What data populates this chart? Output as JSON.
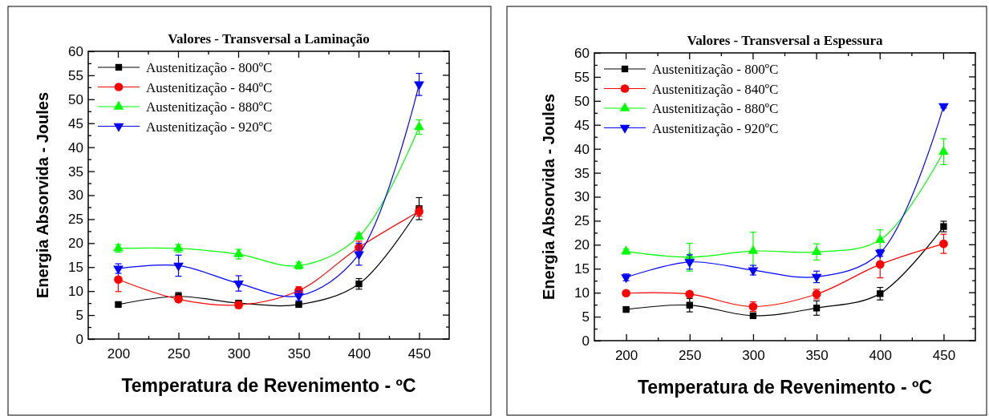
{
  "chart_data": [
    {
      "type": "line",
      "title": "Valores - Transversal a Laminação",
      "xlabel": "Temperatura de Revenimento - ºC",
      "ylabel": "Energia Absorvida - Joules",
      "x": [
        200,
        250,
        300,
        350,
        400,
        450
      ],
      "xlim": [
        175,
        475
      ],
      "ylim": [
        0,
        60
      ],
      "xticks": [
        200,
        {
          "value": 225,
          "label": null
        },
        250,
        {
          "value": 275,
          "label": null
        },
        300,
        {
          "value": 325,
          "label": null
        },
        350,
        {
          "value": 375,
          "label": null
        },
        400,
        {
          "value": 425,
          "label": null
        },
        450
      ],
      "yticks": [
        0,
        {
          "value": 2.5,
          "label": null
        },
        5,
        {
          "value": 7.5,
          "label": null
        },
        10,
        {
          "value": 12.5,
          "label": null
        },
        15,
        {
          "value": 17.5,
          "label": null
        },
        20,
        {
          "value": 22.5,
          "label": null
        },
        25,
        {
          "value": 27.5,
          "label": null
        },
        30,
        {
          "value": 32.5,
          "label": null
        },
        35,
        {
          "value": 37.5,
          "label": null
        },
        40,
        {
          "value": 42.5,
          "label": null
        },
        45,
        {
          "value": 47.5,
          "label": null
        },
        50,
        {
          "value": 52.5,
          "label": null
        },
        55,
        {
          "value": 57.5,
          "label": null
        },
        60
      ],
      "legend": "top left",
      "grid": false,
      "line_style": "solid",
      "series": [
        {
          "name": "Austenitização - 800ºC",
          "color": "#000000",
          "marker": "square",
          "values": [
            7.2,
            8.9,
            7.5,
            7.2,
            11.5,
            27.2
          ],
          "errors": [
            0.4,
            0.8,
            0.4,
            0.3,
            1.1,
            2.3
          ]
        },
        {
          "name": "Austenitização - 840ºC",
          "color": "#ff0000",
          "marker": "circle",
          "values": [
            12.4,
            8.3,
            7.1,
            10.1,
            19.1,
            26.6
          ],
          "errors": [
            2.5,
            0.5,
            0.7,
            0.8,
            1.3,
            1
          ]
        },
        {
          "name": "Austenitização - 880ºC",
          "color": "#00ff00",
          "marker": "triangle",
          "values": [
            18.9,
            18.9,
            17.7,
            15.3,
            21.4,
            44.2
          ],
          "errors": [
            0.8,
            0.8,
            1,
            0.7,
            0.6,
            1.5
          ]
        },
        {
          "name": "Austenitização - 920ºC",
          "color": "#0000ff",
          "marker": "triangle-down",
          "values": [
            14.7,
            15.3,
            11.6,
            9.0,
            17.7,
            53.1
          ],
          "errors": [
            1,
            2.2,
            1.6,
            1,
            2.3,
            2.3
          ]
        }
      ]
    },
    {
      "type": "line",
      "title": "Valores - Transversal a Espessura",
      "xlabel": "Temperatura de Revenimento - ºC",
      "ylabel": "Energia Absorvida - Joules",
      "x": [
        200,
        250,
        300,
        350,
        400,
        450
      ],
      "xlim": [
        175,
        475
      ],
      "ylim": [
        0,
        60
      ],
      "xticks": [
        200,
        {
          "value": 225,
          "label": null
        },
        250,
        {
          "value": 275,
          "label": null
        },
        300,
        {
          "value": 325,
          "label": null
        },
        350,
        {
          "value": 375,
          "label": null
        },
        400,
        {
          "value": 425,
          "label": null
        },
        450
      ],
      "yticks": [
        0,
        {
          "value": 2.5,
          "label": null
        },
        5,
        {
          "value": 7.5,
          "label": null
        },
        10,
        {
          "value": 12.5,
          "label": null
        },
        15,
        {
          "value": 17.5,
          "label": null
        },
        20,
        {
          "value": 22.5,
          "label": null
        },
        25,
        {
          "value": 27.5,
          "label": null
        },
        30,
        {
          "value": 32.5,
          "label": null
        },
        35,
        {
          "value": 37.5,
          "label": null
        },
        40,
        {
          "value": 42.5,
          "label": null
        },
        45,
        {
          "value": 47.5,
          "label": null
        },
        50,
        {
          "value": 52.5,
          "label": null
        },
        55,
        {
          "value": 57.5,
          "label": null
        },
        60
      ],
      "legend": "top left",
      "grid": false,
      "line_style": "solid",
      "series": [
        {
          "name": "Austenitização - 800ºC",
          "color": "#000000",
          "marker": "square",
          "values": [
            6.5,
            7.4,
            5.2,
            6.8,
            9.8,
            23.8
          ],
          "errors": [
            0.3,
            1.4,
            0.4,
            1.5,
            1.3,
            1.1
          ]
        },
        {
          "name": "Austenitização - 840ºC",
          "color": "#ff0000",
          "marker": "circle",
          "values": [
            9.9,
            9.7,
            7.1,
            9.7,
            15.9,
            20.2
          ],
          "errors": [
            0.3,
            0.5,
            1,
            1,
            2.8,
            2
          ]
        },
        {
          "name": "Austenitização - 880ºC",
          "color": "#00ff00",
          "marker": "triangle",
          "values": [
            18.6,
            17.4,
            18.7,
            18.5,
            21,
            39.4
          ],
          "errors": [
            0.5,
            2.9,
            3.9,
            1.7,
            2.1,
            2.7
          ]
        },
        {
          "name": "Austenitização - 920ºC",
          "color": "#0000ff",
          "marker": "triangle-down",
          "values": [
            13.2,
            16.4,
            14.7,
            13.3,
            18.3,
            48.9
          ],
          "errors": [
            0.7,
            1.5,
            1,
            1.2,
            0.7,
            0.4
          ]
        }
      ]
    }
  ]
}
